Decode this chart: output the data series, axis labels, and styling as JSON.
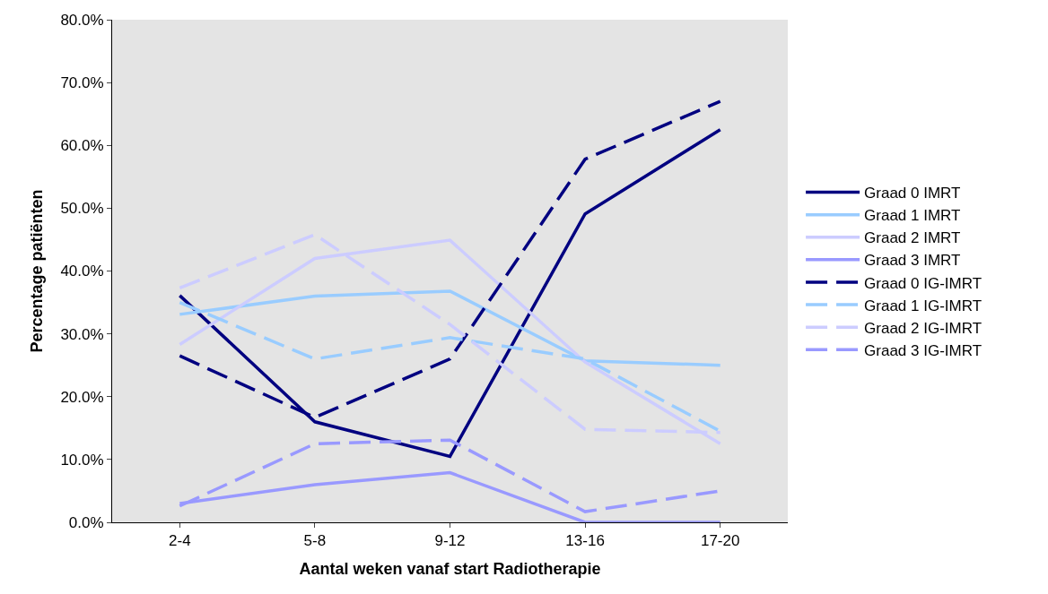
{
  "chart_data": {
    "type": "line",
    "xlabel": "Aantal weken vanaf start Radiotherapie",
    "ylabel": "Percentage patiënten",
    "categories": [
      "2-4",
      "5-8",
      "9-12",
      "13-16",
      "17-20"
    ],
    "ylim": [
      0,
      80
    ],
    "yticks": [
      {
        "value": 0,
        "label": "0.0%"
      },
      {
        "value": 10,
        "label": "10.0%"
      },
      {
        "value": 20,
        "label": "20.0%"
      },
      {
        "value": 30,
        "label": "30.0%"
      },
      {
        "value": 40,
        "label": "40.0%"
      },
      {
        "value": 50,
        "label": "50.0%"
      },
      {
        "value": 60,
        "label": "60.0%"
      },
      {
        "value": 70,
        "label": "70.0%"
      },
      {
        "value": 80,
        "label": "80.0%"
      }
    ],
    "legend": "right",
    "grid": false,
    "marker": "none",
    "series": [
      {
        "name": "Graad 0 IMRT",
        "color": "#000080",
        "line_style": "solid",
        "values": [
          36.1,
          16.0,
          10.5,
          49.1,
          62.5
        ]
      },
      {
        "name": "Graad 1 IMRT",
        "color": "#99ccff",
        "line_style": "solid",
        "values": [
          33.1,
          36.0,
          36.8,
          25.7,
          25.0
        ]
      },
      {
        "name": "Graad 2 IMRT",
        "color": "#ccccff",
        "line_style": "solid",
        "values": [
          28.3,
          42.0,
          44.9,
          25.5,
          12.5
        ]
      },
      {
        "name": "Graad 3 IMRT",
        "color": "#9999ff",
        "line_style": "solid",
        "values": [
          3.0,
          6.0,
          7.9,
          0,
          0
        ]
      },
      {
        "name": "Graad 0 IG-IMRT",
        "color": "#000080",
        "line_style": "dashed",
        "values": [
          26.5,
          16.7,
          26.0,
          57.8,
          67.0
        ]
      },
      {
        "name": "Graad 1 IG-IMRT",
        "color": "#99ccff",
        "line_style": "dashed",
        "values": [
          35.0,
          26.0,
          29.4,
          26.0,
          14.5
        ]
      },
      {
        "name": "Graad 2 IG-IMRT",
        "color": "#ccccff",
        "line_style": "dashed",
        "values": [
          37.3,
          45.8,
          31.5,
          14.8,
          14.3
        ]
      },
      {
        "name": "Graad 3 IG-IMRT",
        "color": "#9999ff",
        "line_style": "dashed",
        "values": [
          2.6,
          12.5,
          13.1,
          1.7,
          5.0
        ]
      }
    ]
  }
}
